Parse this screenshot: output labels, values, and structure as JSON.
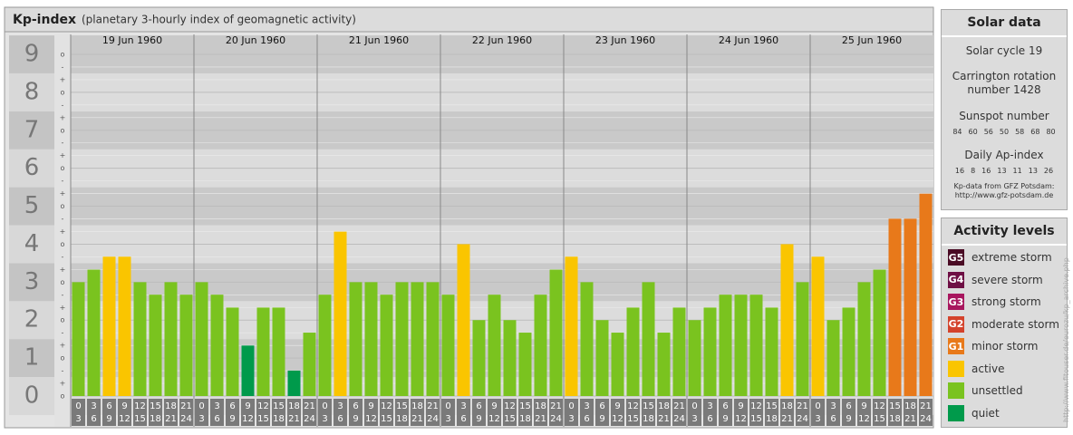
{
  "chart_data": {
    "type": "bar",
    "title": "Kp-index",
    "subtitle": "(planetary 3-hourly index of geomagnetic activity)",
    "days": [
      "19 Jun 1960",
      "20 Jun 1960",
      "21 Jun 1960",
      "22 Jun 1960",
      "23 Jun 1960",
      "24 Jun 1960",
      "25 Jun 1960"
    ],
    "hours": [
      {
        "from": 0,
        "to": 3
      },
      {
        "from": 3,
        "to": 6
      },
      {
        "from": 6,
        "to": 9
      },
      {
        "from": 9,
        "to": 12
      },
      {
        "from": 12,
        "to": 15
      },
      {
        "from": 15,
        "to": 18
      },
      {
        "from": 18,
        "to": 21
      },
      {
        "from": 21,
        "to": 24
      }
    ],
    "values": [
      3,
      3.33,
      3.67,
      3.67,
      3,
      2.67,
      3,
      2.67,
      3,
      2.67,
      2.33,
      1.33,
      2.33,
      2.33,
      0.67,
      1.67,
      2.67,
      4.33,
      3,
      3,
      2.67,
      3,
      3,
      3,
      2.67,
      4,
      2,
      2.67,
      2,
      1.67,
      2.67,
      3.33,
      3.67,
      3,
      2,
      1.67,
      2.33,
      3,
      1.67,
      2.33,
      2,
      2.33,
      2.67,
      2.67,
      2.67,
      2.33,
      4,
      3,
      3.67,
      2,
      2.33,
      3,
      3.33,
      4.67,
      4.67,
      5.33
    ],
    "colors": [
      "#7ac31f",
      "#7ac31f",
      "#fac500",
      "#fac500",
      "#7ac31f",
      "#7ac31f",
      "#7ac31f",
      "#7ac31f",
      "#7ac31f",
      "#7ac31f",
      "#7ac31f",
      "#009a4b",
      "#7ac31f",
      "#7ac31f",
      "#009a4b",
      "#7ac31f",
      "#7ac31f",
      "#fac500",
      "#7ac31f",
      "#7ac31f",
      "#7ac31f",
      "#7ac31f",
      "#7ac31f",
      "#7ac31f",
      "#7ac31f",
      "#fac500",
      "#7ac31f",
      "#7ac31f",
      "#7ac31f",
      "#7ac31f",
      "#7ac31f",
      "#7ac31f",
      "#fac500",
      "#7ac31f",
      "#7ac31f",
      "#7ac31f",
      "#7ac31f",
      "#7ac31f",
      "#7ac31f",
      "#7ac31f",
      "#7ac31f",
      "#7ac31f",
      "#7ac31f",
      "#7ac31f",
      "#7ac31f",
      "#7ac31f",
      "#fac500",
      "#7ac31f",
      "#fac500",
      "#7ac31f",
      "#7ac31f",
      "#7ac31f",
      "#7ac31f",
      "#e8791a",
      "#e8791a",
      "#e8791a"
    ],
    "ylim": [
      0,
      9
    ],
    "yticks": [
      0,
      1,
      2,
      3,
      4,
      5,
      6,
      7,
      8,
      9
    ],
    "minor_labels": [
      "-",
      "o",
      "+"
    ],
    "grid": true
  },
  "solar_data": {
    "title": "Solar data",
    "cycle": "Solar cycle 19",
    "carrington": "Carrington rotation number 1428",
    "sunspot_title": "Sunspot number",
    "sunspot_values": [
      84,
      60,
      56,
      50,
      58,
      68,
      80
    ],
    "ap_title": "Daily Ap-index",
    "ap_values": [
      16,
      8,
      16,
      13,
      11,
      13,
      26
    ],
    "source": "Kp-data from GFZ Potsdam:",
    "url": "http://www.gfz-potsdam.de"
  },
  "activity_levels": {
    "title": "Activity levels",
    "items": [
      {
        "code": "G5",
        "label": "extreme storm",
        "color": "#4a0b24"
      },
      {
        "code": "G4",
        "label": "severe storm",
        "color": "#6e0f44"
      },
      {
        "code": "G3",
        "label": "strong storm",
        "color": "#a8165e"
      },
      {
        "code": "G2",
        "label": "moderate storm",
        "color": "#d4432c"
      },
      {
        "code": "G1",
        "label": "minor storm",
        "color": "#e8791a"
      },
      {
        "label": "active",
        "color": "#fac500"
      },
      {
        "label": "unsettled",
        "color": "#7ac31f"
      },
      {
        "label": "quiet",
        "color": "#009a4b"
      }
    ]
  },
  "watermark": "http://www.fitouser.de/eurozu/kp_archive.php"
}
